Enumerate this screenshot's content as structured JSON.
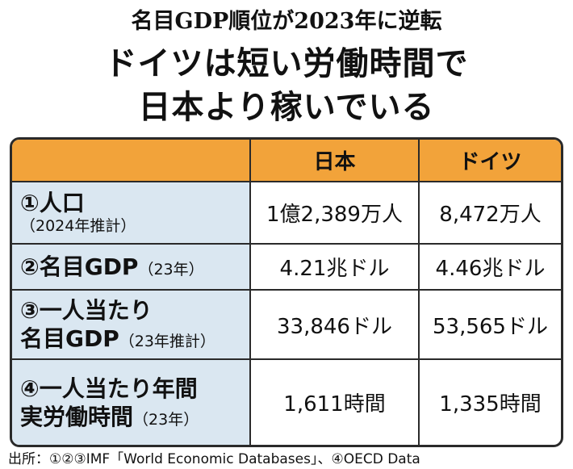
{
  "header": {
    "title": "名目GDP順位が2023年に逆転",
    "headline": [
      "ドイツは短い労働時間で",
      "日本より稼いでいる"
    ]
  },
  "table": {
    "columns": [
      "日本",
      "ドイツ"
    ],
    "rows": [
      {
        "label": [
          "①人口"
        ],
        "note": "（2024年推計）",
        "values": [
          "1億2,389万人",
          "8,472万人"
        ]
      },
      {
        "label": [
          "②名目GDP"
        ],
        "note": "（23年）",
        "values": [
          "4.21兆ドル",
          "4.46兆ドル"
        ]
      },
      {
        "label": [
          "③一人当たり",
          "名目GDP"
        ],
        "note": "（23年推計）",
        "values": [
          "33,846ドル",
          "53,565ドル"
        ]
      },
      {
        "label": [
          "④一人当たり年間",
          "実労働時間"
        ],
        "note": "（23年）",
        "values": [
          "1,611時間",
          "1,335時間"
        ]
      }
    ]
  },
  "source": "出所：①②③IMF「World Economic Databases」、④OECD Data"
}
